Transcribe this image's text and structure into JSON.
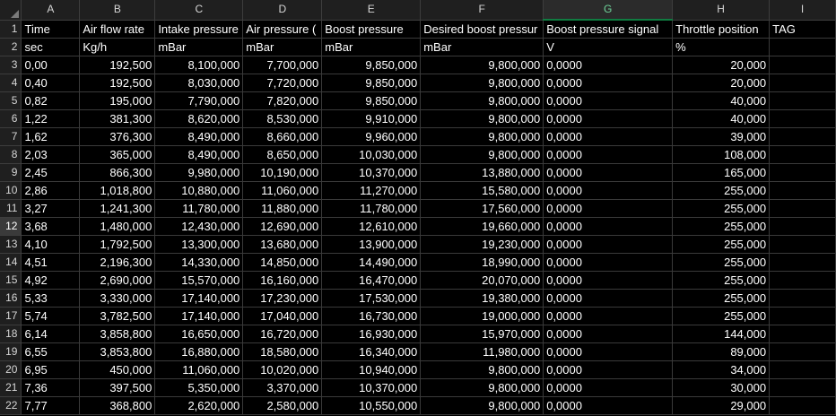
{
  "columns": [
    "A",
    "B",
    "C",
    "D",
    "E",
    "F",
    "G",
    "H",
    "I"
  ],
  "selected_column": "G",
  "selected_row": 12,
  "rows": [
    {
      "n": "1",
      "cells": [
        "Time",
        "Air flow rate",
        "Intake pressure",
        "Air pressure (",
        "Boost pressure",
        "Desired boost pressur",
        "Boost pressure signal",
        "Throttle position",
        "TAG"
      ]
    },
    {
      "n": "2",
      "cells": [
        "sec",
        "Kg/h",
        "mBar",
        "mBar",
        "mBar",
        "mBar",
        "V",
        "%",
        ""
      ]
    },
    {
      "n": "3",
      "cells": [
        "0,00",
        "192,500",
        "8,100,000",
        "7,700,000",
        "9,850,000",
        "9,800,000",
        "0,0000",
        "20,000",
        ""
      ]
    },
    {
      "n": "4",
      "cells": [
        "0,40",
        "192,500",
        "8,030,000",
        "7,720,000",
        "9,850,000",
        "9,800,000",
        "0,0000",
        "20,000",
        ""
      ]
    },
    {
      "n": "5",
      "cells": [
        "0,82",
        "195,000",
        "7,790,000",
        "7,820,000",
        "9,850,000",
        "9,800,000",
        "0,0000",
        "40,000",
        ""
      ]
    },
    {
      "n": "6",
      "cells": [
        "1,22",
        "381,300",
        "8,620,000",
        "8,530,000",
        "9,910,000",
        "9,800,000",
        "0,0000",
        "40,000",
        ""
      ]
    },
    {
      "n": "7",
      "cells": [
        "1,62",
        "376,300",
        "8,490,000",
        "8,660,000",
        "9,960,000",
        "9,800,000",
        "0,0000",
        "39,000",
        ""
      ]
    },
    {
      "n": "8",
      "cells": [
        "2,03",
        "365,000",
        "8,490,000",
        "8,650,000",
        "10,030,000",
        "9,800,000",
        "0,0000",
        "108,000",
        ""
      ]
    },
    {
      "n": "9",
      "cells": [
        "2,45",
        "866,300",
        "9,980,000",
        "10,190,000",
        "10,370,000",
        "13,880,000",
        "0,0000",
        "165,000",
        ""
      ]
    },
    {
      "n": "10",
      "cells": [
        "2,86",
        "1,018,800",
        "10,880,000",
        "11,060,000",
        "11,270,000",
        "15,580,000",
        "0,0000",
        "255,000",
        ""
      ]
    },
    {
      "n": "11",
      "cells": [
        "3,27",
        "1,241,300",
        "11,780,000",
        "11,880,000",
        "11,780,000",
        "17,560,000",
        "0,0000",
        "255,000",
        ""
      ]
    },
    {
      "n": "12",
      "cells": [
        "3,68",
        "1,480,000",
        "12,430,000",
        "12,690,000",
        "12,610,000",
        "19,660,000",
        "0,0000",
        "255,000",
        ""
      ]
    },
    {
      "n": "13",
      "cells": [
        "4,10",
        "1,792,500",
        "13,300,000",
        "13,680,000",
        "13,900,000",
        "19,230,000",
        "0,0000",
        "255,000",
        ""
      ]
    },
    {
      "n": "14",
      "cells": [
        "4,51",
        "2,196,300",
        "14,330,000",
        "14,850,000",
        "14,490,000",
        "18,990,000",
        "0,0000",
        "255,000",
        ""
      ]
    },
    {
      "n": "15",
      "cells": [
        "4,92",
        "2,690,000",
        "15,570,000",
        "16,160,000",
        "16,470,000",
        "20,070,000",
        "0,0000",
        "255,000",
        ""
      ]
    },
    {
      "n": "16",
      "cells": [
        "5,33",
        "3,330,000",
        "17,140,000",
        "17,230,000",
        "17,530,000",
        "19,380,000",
        "0,0000",
        "255,000",
        ""
      ]
    },
    {
      "n": "17",
      "cells": [
        "5,74",
        "3,782,500",
        "17,140,000",
        "17,040,000",
        "16,730,000",
        "19,000,000",
        "0,0000",
        "255,000",
        ""
      ]
    },
    {
      "n": "18",
      "cells": [
        "6,14",
        "3,858,800",
        "16,650,000",
        "16,720,000",
        "16,930,000",
        "15,970,000",
        "0,0000",
        "144,000",
        ""
      ]
    },
    {
      "n": "19",
      "cells": [
        "6,55",
        "3,853,800",
        "16,880,000",
        "18,580,000",
        "16,340,000",
        "11,980,000",
        "0,0000",
        "89,000",
        ""
      ]
    },
    {
      "n": "20",
      "cells": [
        "6,95",
        "450,000",
        "11,060,000",
        "10,020,000",
        "10,940,000",
        "9,800,000",
        "0,0000",
        "34,000",
        ""
      ]
    },
    {
      "n": "21",
      "cells": [
        "7,36",
        "397,500",
        "5,350,000",
        "3,370,000",
        "10,370,000",
        "9,800,000",
        "0,0000",
        "30,000",
        ""
      ]
    },
    {
      "n": "22",
      "cells": [
        "7,77",
        "368,800",
        "2,620,000",
        "2,580,000",
        "10,550,000",
        "9,800,000",
        "0,0000",
        "29,000",
        ""
      ]
    }
  ]
}
